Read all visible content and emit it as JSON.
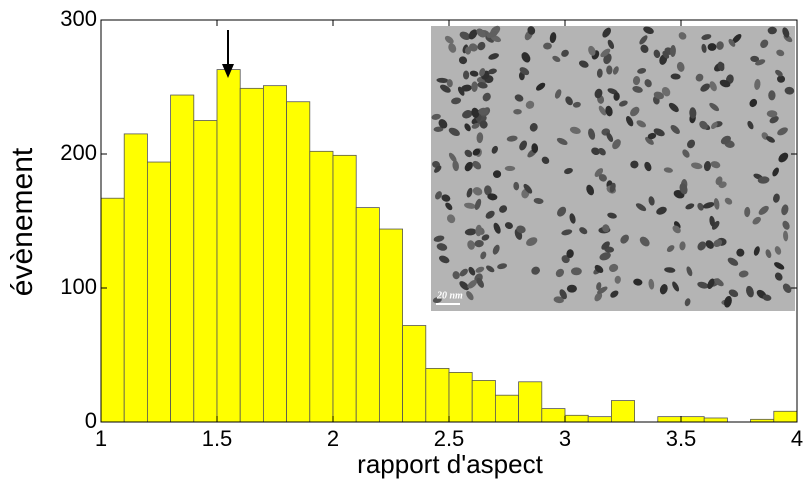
{
  "chart_data": {
    "type": "histogram",
    "xlabel": "rapport d'aspect",
    "ylabel": "évènement",
    "bins": [
      1.0,
      1.1,
      1.2,
      1.3,
      1.4,
      1.5,
      1.6,
      1.7,
      1.8,
      1.9,
      2.0,
      2.1,
      2.2,
      2.3,
      2.4,
      2.5,
      2.6,
      2.7,
      2.8,
      2.9,
      3.0,
      3.1,
      3.2,
      3.3,
      3.4,
      3.5,
      3.6,
      3.7,
      3.8,
      3.9,
      4.0
    ],
    "values": [
      167,
      215,
      194,
      244,
      225,
      263,
      249,
      251,
      239,
      202,
      199,
      160,
      144,
      72,
      40,
      37,
      31,
      20,
      30,
      10,
      5,
      4,
      16,
      0,
      4,
      4,
      3,
      0,
      2,
      8
    ],
    "color": "#ffff00",
    "xlim": [
      1,
      4
    ],
    "xticks": [
      1,
      1.5,
      2,
      2.5,
      3,
      3.5,
      4
    ],
    "ylim": [
      0,
      300
    ],
    "yticks": [
      0,
      100,
      200,
      300
    ],
    "inset_scale_label": "20 nm"
  }
}
